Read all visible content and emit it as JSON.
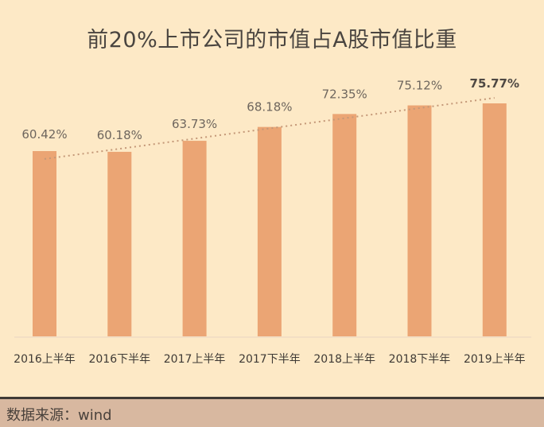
{
  "title": "前20%上市公司的市值占A股市值比重",
  "footer": {
    "source": "数据来源：wind"
  },
  "colors": {
    "background": "#fde9c6",
    "bar": "#eba574",
    "footer": "#d8b8a0",
    "trend": "#c49878"
  },
  "chart_data": {
    "type": "bar",
    "title": "前20%上市公司的市值占A股市值比重",
    "categories": [
      "2016上半年",
      "2016下半年",
      "2017上半年",
      "2017下半年",
      "2018上半年",
      "2018下半年",
      "2019上半年"
    ],
    "values": [
      60.42,
      60.18,
      63.73,
      68.18,
      72.35,
      75.12,
      75.77
    ],
    "labels": [
      "60.42%",
      "60.18%",
      "63.73%",
      "68.18%",
      "72.35%",
      "75.12%",
      "75.77%"
    ],
    "unit": "%",
    "xlabel": "",
    "ylabel": "",
    "grid": false,
    "trendline": "dotted linear",
    "source": "数据来源：wind"
  }
}
